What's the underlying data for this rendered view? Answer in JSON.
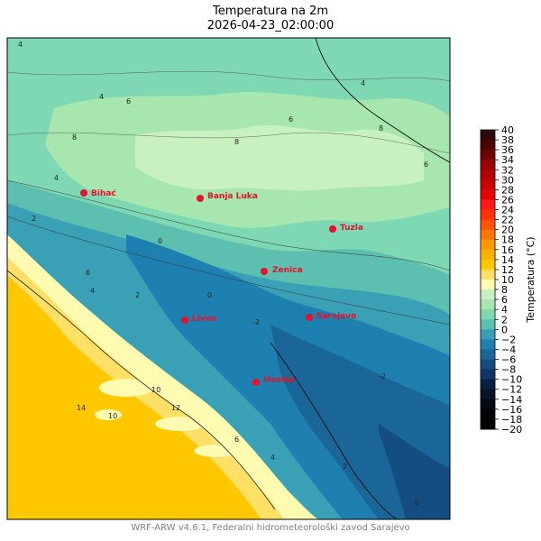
{
  "title": {
    "line1": "Temperatura na 2m",
    "line2": "2026-04-23_02:00:00"
  },
  "footer": "WRF-ARW v4.6.1, Federalni hidrometeorološki zavod Sarajevo",
  "colorbar": {
    "label": "Temperatura (°C)",
    "ticks": [
      40,
      38,
      36,
      34,
      32,
      30,
      28,
      26,
      24,
      22,
      20,
      18,
      16,
      14,
      12,
      10,
      8,
      6,
      4,
      2,
      0,
      -2,
      -4,
      -6,
      -8,
      -10,
      -12,
      -14,
      -16,
      -18,
      -20
    ],
    "tick_labels": [
      "40",
      "38",
      "36",
      "34",
      "32",
      "30",
      "28",
      "26",
      "24",
      "22",
      "20",
      "18",
      "16",
      "14",
      "12",
      "10",
      "8",
      "6",
      "4",
      "2",
      "0",
      "−2",
      "−4",
      "−6",
      "−8",
      "−10",
      "−12",
      "−14",
      "−16",
      "−18",
      "−20"
    ],
    "colors": [
      "#2a0a0a",
      "#4d0000",
      "#730000",
      "#990000",
      "#b30000",
      "#cc0000",
      "#e60000",
      "#ff1a1a",
      "#ff3300",
      "#ff5500",
      "#ff7700",
      "#ff9900",
      "#ffb000",
      "#ffc800",
      "#ffe066",
      "#fffbb0",
      "#c8f0c0",
      "#a8e6b0",
      "#7fd8b4",
      "#5cbfb0",
      "#3aa0b5",
      "#1e80b0",
      "#1a6699",
      "#144d80",
      "#0e3566",
      "#0a2040",
      "#071429",
      "#040a14",
      "#000000",
      "#000000"
    ]
  },
  "cities": [
    {
      "name": "Bihać"
    },
    {
      "name": "Banja Luka"
    },
    {
      "name": "Tuzla"
    },
    {
      "name": "Zenica"
    },
    {
      "name": "Livno"
    },
    {
      "name": "Sarajevo"
    },
    {
      "name": "Mostar"
    }
  ],
  "contour_labels": [
    "4",
    "4",
    "4",
    "6",
    "6",
    "8",
    "8",
    "8",
    "6",
    "4",
    "2",
    "0",
    "-2",
    "-2",
    "0",
    "2",
    "4",
    "6",
    "10",
    "14",
    "12",
    "10",
    "6",
    "4",
    "2",
    "0"
  ]
}
